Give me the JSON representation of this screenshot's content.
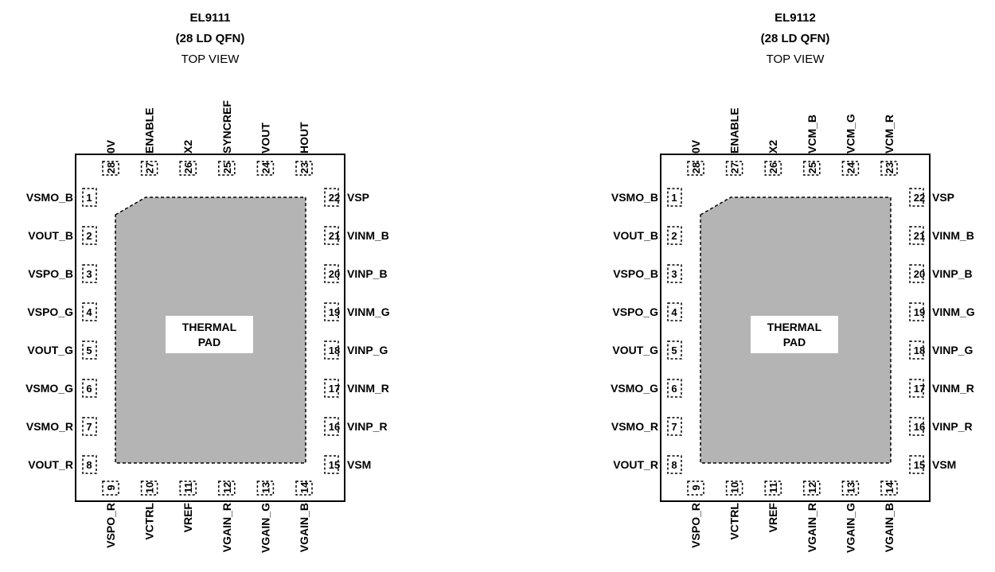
{
  "packages": [
    {
      "part": "EL9111",
      "package": "(28 LD QFN)",
      "view": "TOP VIEW",
      "pad_label": [
        "THERMAL",
        "PAD"
      ],
      "left_pins": [
        {
          "num": "1",
          "name": "VSMO_B"
        },
        {
          "num": "2",
          "name": "VOUT_B"
        },
        {
          "num": "3",
          "name": "VSPO_B"
        },
        {
          "num": "4",
          "name": "VSPO_G"
        },
        {
          "num": "5",
          "name": "VOUT_G"
        },
        {
          "num": "6",
          "name": "VSMO_G"
        },
        {
          "num": "7",
          "name": "VSMO_R"
        },
        {
          "num": "8",
          "name": "VOUT_R"
        }
      ],
      "bottom_pins": [
        {
          "num": "9",
          "name": "VSPO_R"
        },
        {
          "num": "10",
          "name": "VCTRL"
        },
        {
          "num": "11",
          "name": "VREF"
        },
        {
          "num": "12",
          "name": "VGAIN_R"
        },
        {
          "num": "13",
          "name": "VGAIN_G"
        },
        {
          "num": "14",
          "name": "VGAIN_B"
        }
      ],
      "right_pins": [
        {
          "num": "15",
          "name": "VSM"
        },
        {
          "num": "16",
          "name": "VINP_R"
        },
        {
          "num": "17",
          "name": "VINM_R"
        },
        {
          "num": "18",
          "name": "VINP_G"
        },
        {
          "num": "19",
          "name": "VINM_G"
        },
        {
          "num": "20",
          "name": "VINP_B"
        },
        {
          "num": "21",
          "name": "VINM_B"
        },
        {
          "num": "22",
          "name": "VSP"
        }
      ],
      "top_pins": [
        {
          "num": "23",
          "name": "HOUT"
        },
        {
          "num": "24",
          "name": "VOUT"
        },
        {
          "num": "25",
          "name": "SYNCREF"
        },
        {
          "num": "26",
          "name": "X2"
        },
        {
          "num": "27",
          "name": "ENABLE"
        },
        {
          "num": "28",
          "name": "0V"
        }
      ]
    },
    {
      "part": "EL9112",
      "package": "(28 LD QFN)",
      "view": "TOP VIEW",
      "pad_label": [
        "THERMAL",
        "PAD"
      ],
      "left_pins": [
        {
          "num": "1",
          "name": "VSMO_B"
        },
        {
          "num": "2",
          "name": "VOUT_B"
        },
        {
          "num": "3",
          "name": "VSPO_B"
        },
        {
          "num": "4",
          "name": "VSPO_G"
        },
        {
          "num": "5",
          "name": "VOUT_G"
        },
        {
          "num": "6",
          "name": "VSMO_G"
        },
        {
          "num": "7",
          "name": "VSMO_R"
        },
        {
          "num": "8",
          "name": "VOUT_R"
        }
      ],
      "bottom_pins": [
        {
          "num": "9",
          "name": "VSPO_R"
        },
        {
          "num": "10",
          "name": "VCTRL"
        },
        {
          "num": "11",
          "name": "VREF"
        },
        {
          "num": "12",
          "name": "VGAIN_R"
        },
        {
          "num": "13",
          "name": "VGAIN_G"
        },
        {
          "num": "14",
          "name": "VGAIN_B"
        }
      ],
      "right_pins": [
        {
          "num": "15",
          "name": "VSM"
        },
        {
          "num": "16",
          "name": "VINP_R"
        },
        {
          "num": "17",
          "name": "VINM_R"
        },
        {
          "num": "18",
          "name": "VINP_G"
        },
        {
          "num": "19",
          "name": "VINM_G"
        },
        {
          "num": "20",
          "name": "VINP_B"
        },
        {
          "num": "21",
          "name": "VINM_B"
        },
        {
          "num": "22",
          "name": "VSP"
        }
      ],
      "top_pins": [
        {
          "num": "23",
          "name": "VCM_R"
        },
        {
          "num": "24",
          "name": "VCM_G"
        },
        {
          "num": "25",
          "name": "VCM_B"
        },
        {
          "num": "26",
          "name": "X2"
        },
        {
          "num": "27",
          "name": "ENABLE"
        },
        {
          "num": "28",
          "name": "0V"
        }
      ]
    }
  ],
  "colors": {
    "pad_fill": "#b4b4b4",
    "outline": "#000000",
    "label_box": "#ffffff"
  }
}
